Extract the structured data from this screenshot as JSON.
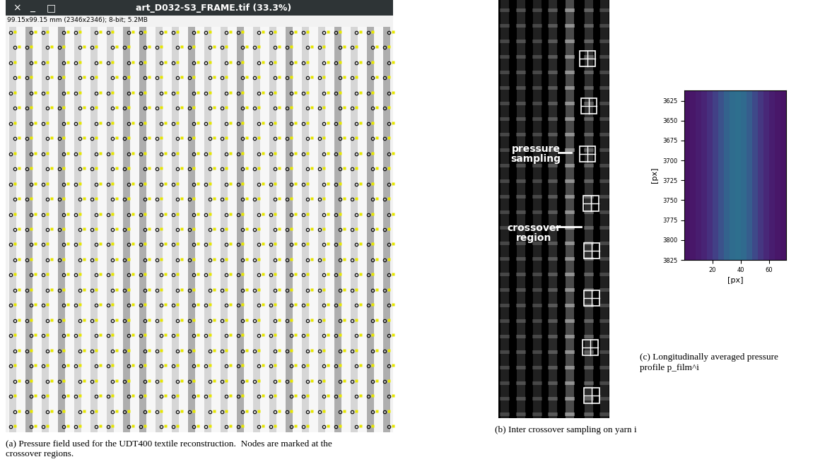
{
  "window": {
    "title": "art_D032-S3_FRAME.tif (33.3%)",
    "info": "99.15x99.15 mm (2346x2346); 8-bit; 5.2MB",
    "buttons": [
      "×",
      "_",
      "□"
    ]
  },
  "panels": {
    "a": {
      "caption": "(a) Pressure field used for the UDT400 textile reconstruction.  Nodes are marked at the\ncrossover regions."
    },
    "b": {
      "caption": "(b) Inter crossover sampling on yarn i",
      "labels": [
        "pressure\nsampling",
        "crossover\nregion"
      ]
    },
    "c": {
      "caption": "(c) Longitudinally averaged pressure\nprofile p_film^i"
    }
  },
  "chart_data": {
    "type": "heatmap",
    "xlabel": "[px]",
    "ylabel": "[px]",
    "xlim": [
      0,
      72
    ],
    "ylim": [
      3825,
      3612
    ],
    "xticks": [
      20,
      40,
      60
    ],
    "yticks": [
      3625,
      3650,
      3675,
      3700,
      3725,
      3750,
      3775,
      3800,
      3825
    ],
    "profile": [
      0.05,
      0.06,
      0.08,
      0.1,
      0.14,
      0.19,
      0.25,
      0.31,
      0.35,
      0.36,
      0.34,
      0.29,
      0.22,
      0.16,
      0.11,
      0.08,
      0.06,
      0.05
    ],
    "color_range": [
      0,
      1
    ]
  }
}
